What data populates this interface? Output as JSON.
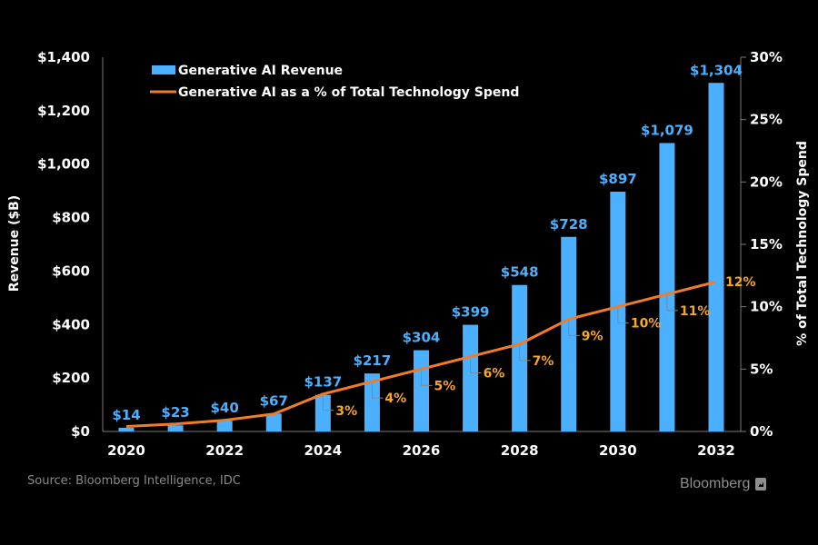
{
  "chart_data": {
    "type": "bar",
    "title": "",
    "categories": [
      "2020",
      "2021",
      "2022",
      "2023",
      "2024",
      "2025",
      "2026",
      "2027",
      "2028",
      "2029",
      "2030",
      "2031",
      "2032"
    ],
    "x_tick_labels": [
      "2020",
      "2022",
      "2024",
      "2026",
      "2028",
      "2030",
      "2032"
    ],
    "series": [
      {
        "name": "Generative AI Revenue",
        "type": "bar",
        "axis": "left",
        "color": "#4ab0ff",
        "values": [
          14,
          23,
          40,
          67,
          137,
          217,
          304,
          399,
          548,
          728,
          897,
          1079,
          1304
        ],
        "labels": [
          "$14",
          "$23",
          "$40",
          "$67",
          "$137",
          "$217",
          "$304",
          "$399",
          "$548",
          "$728",
          "$897",
          "$1,079",
          "$1,304"
        ]
      },
      {
        "name": "Generative AI as a % of Total Technology Spend",
        "type": "line",
        "axis": "right",
        "color": "#f07c2a",
        "values": [
          0.4,
          0.6,
          0.9,
          1.4,
          3,
          4,
          5,
          6,
          7,
          9,
          10,
          11,
          12
        ],
        "labels": [
          null,
          null,
          null,
          null,
          "3%",
          "4%",
          "5%",
          "6%",
          "7%",
          "9%",
          "10%",
          "11%",
          "12%"
        ]
      }
    ],
    "ylabel": "Revenue ($B)",
    "ylim": [
      0,
      1400
    ],
    "y_ticks": [
      0,
      200,
      400,
      600,
      800,
      1000,
      1200,
      1400
    ],
    "y_tick_labels": [
      "$0",
      "$200",
      "$400",
      "$600",
      "$800",
      "$1,000",
      "$1,200",
      "$1,400"
    ],
    "y2label": "% of Total Technology Spend",
    "y2lim": [
      0,
      30
    ],
    "y2_ticks": [
      0,
      5,
      10,
      15,
      20,
      25,
      30
    ],
    "y2_tick_labels": [
      "0%",
      "5%",
      "10%",
      "15%",
      "20%",
      "25%",
      "30%"
    ],
    "grid": false,
    "legend_position": "top-left",
    "source": "Source: Bloomberg Intelligence, IDC"
  },
  "footer": {
    "source": "Source: Bloomberg Intelligence, IDC",
    "brand": "Bloomberg"
  },
  "colors": {
    "background": "#000000",
    "bar": "#4ab0ff",
    "line": "#f07c2a",
    "pct_label": "#f5a623",
    "axis": "#7a7a7a"
  }
}
